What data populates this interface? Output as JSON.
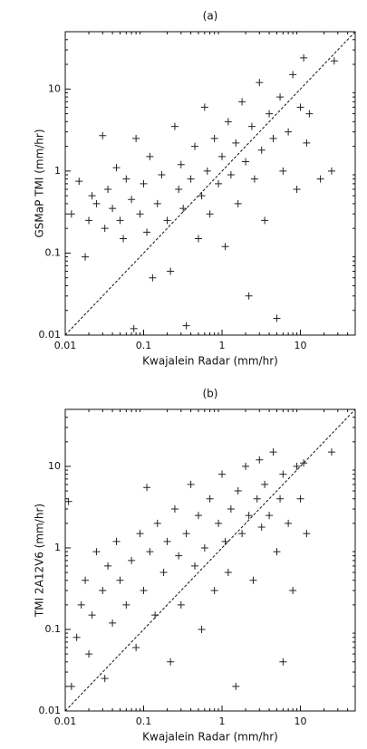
{
  "chart_data": [
    {
      "type": "scatter",
      "title": "(a)",
      "x_label": "Kwajalein Radar (mm/hr)",
      "y_label": "GSMaP TMI (mm/hr)",
      "marker": "+",
      "color": "#222222",
      "log_x": true,
      "log_y": true,
      "diagonal": true,
      "xlim": [
        0.01,
        50
      ],
      "ylim": [
        0.01,
        50
      ],
      "xticks": [
        0.01,
        0.1,
        1,
        10
      ],
      "yticks": [
        0.01,
        0.1,
        1,
        10
      ],
      "x": [
        0.012,
        0.015,
        0.018,
        0.02,
        0.022,
        0.025,
        0.03,
        0.032,
        0.035,
        0.04,
        0.045,
        0.05,
        0.055,
        0.06,
        0.07,
        0.075,
        0.08,
        0.09,
        0.1,
        0.11,
        0.12,
        0.13,
        0.15,
        0.17,
        0.2,
        0.22,
        0.25,
        0.28,
        0.3,
        0.32,
        0.35,
        0.4,
        0.45,
        0.5,
        0.55,
        0.6,
        0.65,
        0.7,
        0.8,
        0.9,
        1.0,
        1.1,
        1.2,
        1.3,
        1.5,
        1.6,
        1.8,
        2.0,
        2.2,
        2.4,
        2.6,
        3,
        3.2,
        3.5,
        4,
        4.5,
        5,
        5.5,
        6,
        7,
        8,
        9,
        10,
        11,
        12,
        13,
        18,
        25,
        27
      ],
      "y": [
        0.3,
        0.75,
        0.09,
        0.25,
        0.5,
        0.4,
        2.7,
        0.2,
        0.6,
        0.35,
        1.1,
        0.25,
        0.15,
        0.8,
        0.45,
        0.012,
        2.5,
        0.3,
        0.7,
        0.18,
        1.5,
        0.05,
        0.4,
        0.9,
        0.25,
        0.06,
        3.5,
        0.6,
        1.2,
        0.35,
        0.013,
        0.8,
        2.0,
        0.15,
        0.5,
        6,
        1.0,
        0.3,
        2.5,
        0.7,
        1.5,
        0.12,
        4,
        0.9,
        2.2,
        0.4,
        7,
        1.3,
        0.03,
        3.5,
        0.8,
        12,
        1.8,
        0.25,
        5,
        2.5,
        0.016,
        8,
        1.0,
        3,
        15,
        0.6,
        6,
        24,
        2.2,
        5,
        0.8,
        1.0,
        22
      ]
    },
    {
      "type": "scatter",
      "title": "(b)",
      "x_label": "Kwajalein Radar (mm/hr)",
      "y_label": "TMI 2A12V6 (mm/hr)",
      "marker": "+",
      "color": "#222222",
      "log_x": true,
      "log_y": true,
      "diagonal": true,
      "xlim": [
        0.01,
        50
      ],
      "ylim": [
        0.01,
        50
      ],
      "xticks": [
        0.01,
        0.1,
        1,
        10
      ],
      "yticks": [
        0.01,
        0.1,
        1,
        10
      ],
      "x": [
        0.011,
        0.012,
        0.014,
        0.016,
        0.018,
        0.02,
        0.022,
        0.025,
        0.03,
        0.032,
        0.035,
        0.04,
        0.045,
        0.05,
        0.06,
        0.07,
        0.08,
        0.09,
        0.1,
        0.11,
        0.12,
        0.14,
        0.15,
        0.18,
        0.2,
        0.22,
        0.25,
        0.28,
        0.3,
        0.35,
        0.4,
        0.45,
        0.5,
        0.55,
        0.6,
        0.7,
        0.8,
        0.9,
        1.0,
        1.1,
        1.2,
        1.3,
        1.5,
        1.6,
        1.8,
        2.0,
        2.2,
        2.5,
        2.8,
        3,
        3.2,
        3.5,
        4,
        4.5,
        5,
        5.5,
        6,
        7,
        8,
        9,
        10,
        11,
        12,
        25,
        6
      ],
      "y": [
        3.7,
        0.02,
        0.08,
        0.2,
        0.4,
        0.05,
        0.15,
        0.9,
        0.3,
        0.025,
        0.6,
        0.12,
        1.2,
        0.4,
        0.2,
        0.7,
        0.06,
        1.5,
        0.3,
        5.5,
        0.9,
        0.15,
        2.0,
        0.5,
        1.2,
        0.04,
        3,
        0.8,
        0.2,
        1.5,
        6,
        0.6,
        2.5,
        0.1,
        1.0,
        4,
        0.3,
        2,
        8,
        1.2,
        0.5,
        3,
        0.02,
        5,
        1.5,
        10,
        2.5,
        0.4,
        4,
        12,
        1.8,
        6,
        2.5,
        15,
        0.9,
        4,
        8,
        2,
        0.3,
        10,
        4,
        11,
        1.5,
        15,
        0.04
      ]
    }
  ]
}
